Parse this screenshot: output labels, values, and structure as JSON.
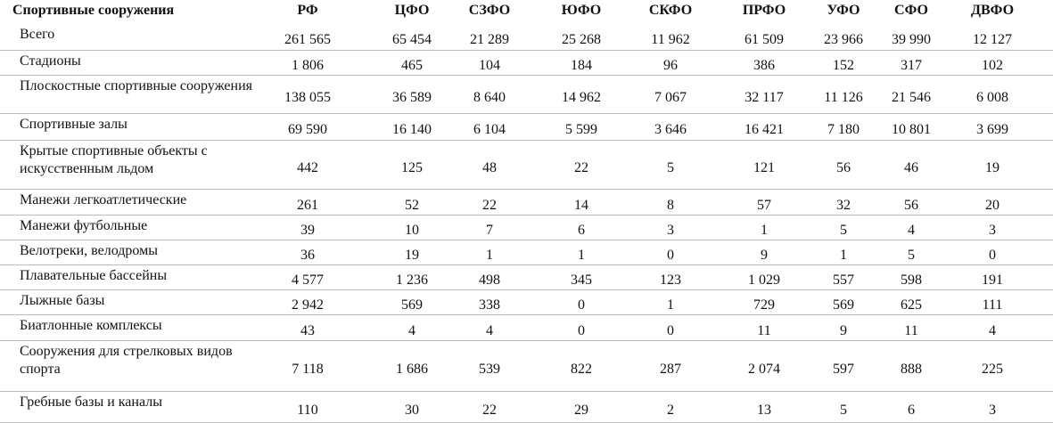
{
  "table": {
    "headers": [
      "Спортивные сооружения",
      "РФ",
      "ЦФО",
      "СЗФО",
      "ЮФО",
      "СКФО",
      "ПРФО",
      "УФО",
      "СФО",
      "ДВФО"
    ],
    "rows": [
      {
        "label": "Всего",
        "values": [
          "261 565",
          "65 454",
          "21 289",
          "25 268",
          "11 962",
          "61 509",
          "23 966",
          "39 990",
          "12 127"
        ]
      },
      {
        "label": "Стадионы",
        "values": [
          "1 806",
          "465",
          "104",
          "184",
          "96",
          "386",
          "152",
          "317",
          "102"
        ]
      },
      {
        "label": "Плоскостные спортивные сооружения",
        "values": [
          "138 055",
          "36 589",
          "8 640",
          "14 962",
          "7 067",
          "32 117",
          "11 126",
          "21 546",
          "6 008"
        ]
      },
      {
        "label": "Спортивные залы",
        "values": [
          "69 590",
          "16 140",
          "6 104",
          "5 599",
          "3 646",
          "16 421",
          "7 180",
          "10 801",
          "3 699"
        ]
      },
      {
        "label": "Крытые спортивные объекты с искусственным льдом",
        "values": [
          "442",
          "125",
          "48",
          "22",
          "5",
          "121",
          "56",
          "46",
          "19"
        ]
      },
      {
        "label": "Манежи легкоатлетические",
        "values": [
          "261",
          "52",
          "22",
          "14",
          "8",
          "57",
          "32",
          "56",
          "20"
        ]
      },
      {
        "label": "Манежи футбольные",
        "values": [
          "39",
          "10",
          "7",
          "6",
          "3",
          "1",
          "5",
          "4",
          "3"
        ]
      },
      {
        "label": "Велотреки, велодромы",
        "values": [
          "36",
          "19",
          "1",
          "1",
          "0",
          "9",
          "1",
          "5",
          "0"
        ]
      },
      {
        "label": "Плавательные бассейны",
        "values": [
          "4 577",
          "1 236",
          "498",
          "345",
          "123",
          "1 029",
          "557",
          "598",
          "191"
        ]
      },
      {
        "label": "Лыжные базы",
        "values": [
          "2 942",
          "569",
          "338",
          "0",
          "1",
          "729",
          "569",
          "625",
          "111"
        ]
      },
      {
        "label": "Биатлонные комплексы",
        "values": [
          "43",
          "4",
          "4",
          "0",
          "0",
          "11",
          "9",
          "11",
          "4"
        ]
      },
      {
        "label": "Сооружения для стрелковых видов спорта",
        "values": [
          "7 118",
          "1 686",
          "539",
          "822",
          "287",
          "2 074",
          "597",
          "888",
          "225"
        ]
      },
      {
        "label": "Гребные базы и каналы",
        "values": [
          "110",
          "30",
          "22",
          "29",
          "2",
          "13",
          "5",
          "6",
          "3"
        ]
      }
    ]
  }
}
